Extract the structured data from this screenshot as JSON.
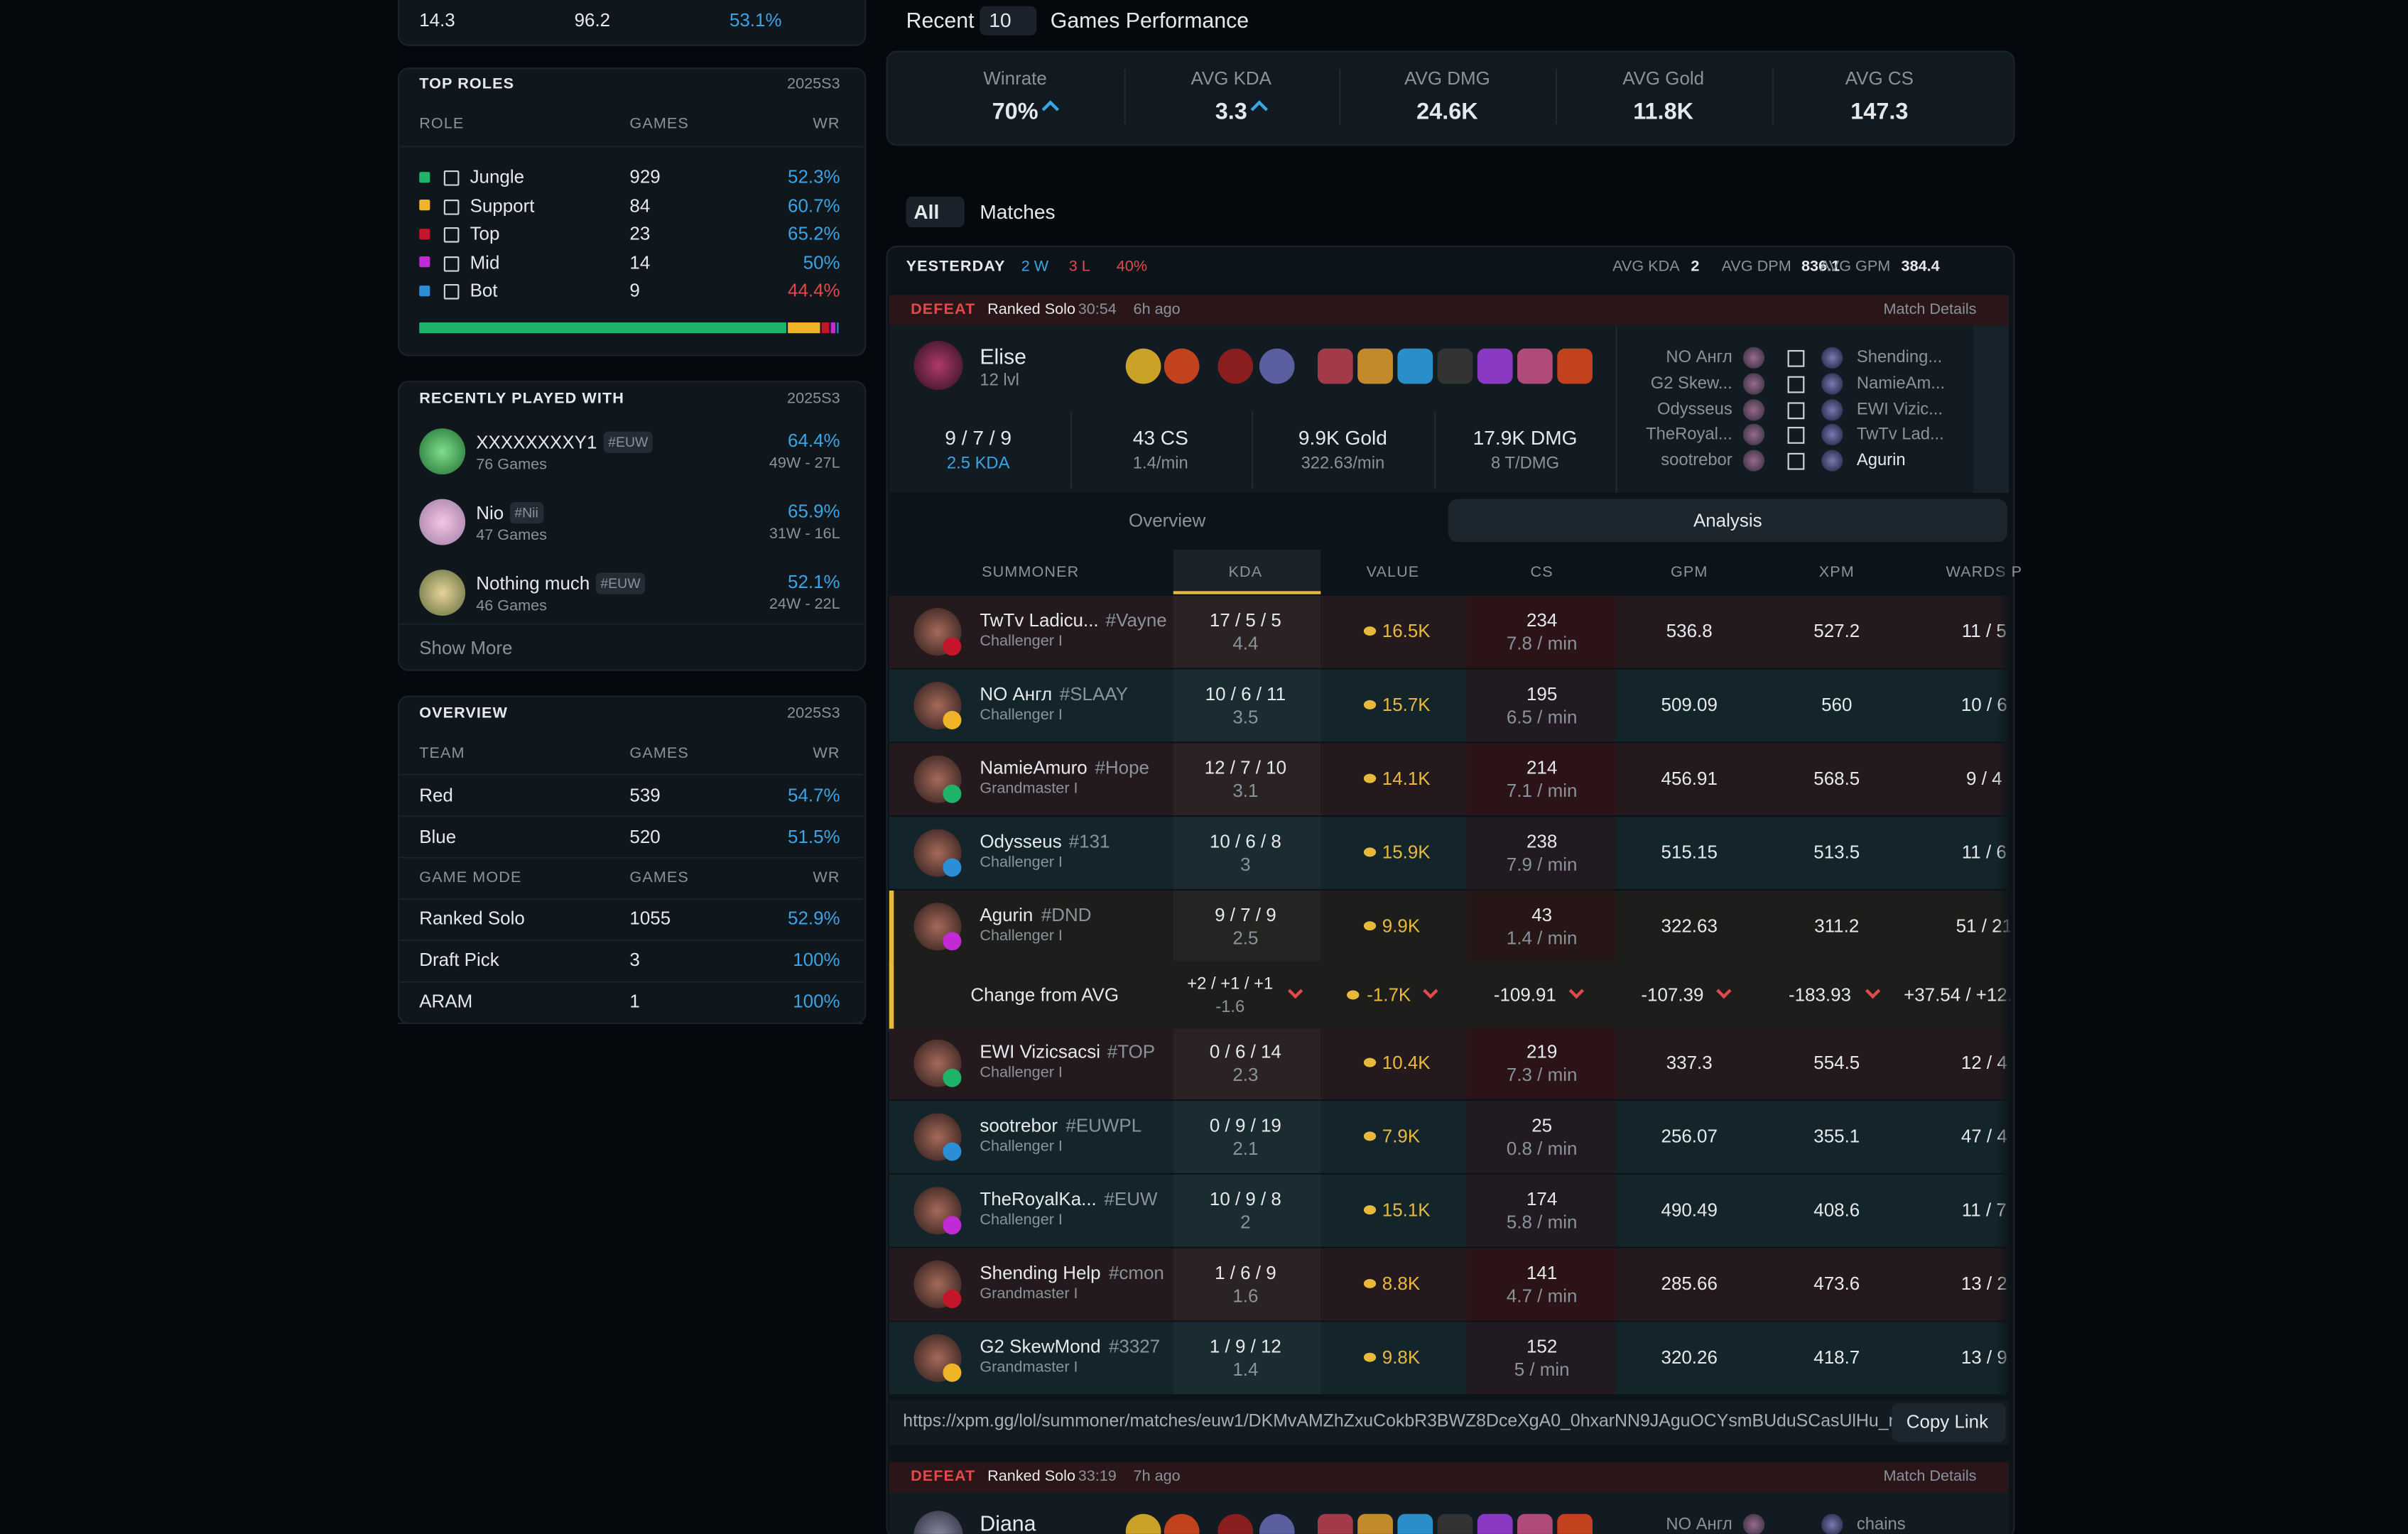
{
  "stats_strip": {
    "values": [
      "14.3",
      "96.2",
      "53.1%"
    ]
  },
  "top_roles": {
    "title": "TOP ROLES",
    "season": "2025S3",
    "headers": [
      "ROLE",
      "GAMES",
      "WR"
    ],
    "rows": [
      {
        "role": "Jungle",
        "games": 929,
        "wr": "52.3%",
        "color": "#1fb46a",
        "wr_color": "#3aa5e6"
      },
      {
        "role": "Support",
        "games": 84,
        "wr": "60.7%",
        "color": "#f0b429",
        "wr_color": "#3aa5e6"
      },
      {
        "role": "Top",
        "games": 23,
        "wr": "65.2%",
        "color": "#c4162a",
        "wr_color": "#3aa5e6"
      },
      {
        "role": "Mid",
        "games": 14,
        "wr": "50%",
        "color": "#c429d6",
        "wr_color": "#3aa5e6"
      },
      {
        "role": "Bot",
        "games": 9,
        "wr": "44.4%",
        "color": "#2a8fd6",
        "wr_color": "#e04a4a"
      }
    ]
  },
  "recently_played": {
    "title": "RECENTLY PLAYED WITH",
    "season": "2025S3",
    "players": [
      {
        "name": "XXXXXXXXY1",
        "tag": "#EUW",
        "games": "76 Games",
        "wr": "64.4%",
        "record": "49W - 27L"
      },
      {
        "name": "Nio",
        "tag": "#Nii",
        "games": "47 Games",
        "wr": "65.9%",
        "record": "31W - 16L"
      },
      {
        "name": "Nothing much",
        "tag": "#EUW",
        "games": "46 Games",
        "wr": "52.1%",
        "record": "24W - 22L"
      }
    ],
    "show_more": "Show More"
  },
  "overview": {
    "title": "OVERVIEW",
    "season": "2025S3",
    "groups": [
      {
        "headers": [
          "TEAM",
          "GAMES",
          "WR"
        ],
        "rows": [
          [
            "Red",
            "539",
            "54.7%"
          ],
          [
            "Blue",
            "520",
            "51.5%"
          ]
        ]
      },
      {
        "headers": [
          "GAME MODE",
          "GAMES",
          "WR"
        ],
        "rows": [
          [
            "Ranked Solo",
            "1055",
            "52.9%"
          ],
          [
            "Draft Pick",
            "3",
            "100%"
          ],
          [
            "ARAM",
            "1",
            "100%"
          ]
        ]
      }
    ]
  },
  "performance": {
    "recent": "Recent",
    "count": "10",
    "label": "Games Performance",
    "stats": [
      {
        "label": "Winrate",
        "value": "70%",
        "trend": "up"
      },
      {
        "label": "AVG KDA",
        "value": "3.3",
        "trend": "up"
      },
      {
        "label": "AVG DMG",
        "value": "24.6K"
      },
      {
        "label": "AVG Gold",
        "value": "11.8K"
      },
      {
        "label": "AVG CS",
        "value": "147.3"
      }
    ]
  },
  "matches_filter": {
    "filter": "All",
    "label": "Matches"
  },
  "day": {
    "label": "YESTERDAY",
    "wins": "2 W",
    "losses": "3 L",
    "winrate": "40%",
    "avgs": [
      {
        "label": "AVG KDA",
        "value": "2"
      },
      {
        "label": "AVG DPM",
        "value": "836.1"
      },
      {
        "label": "AVG GPM",
        "value": "384.4"
      }
    ]
  },
  "match1": {
    "result": "DEFEAT",
    "queue": "Ranked Solo",
    "duration": "30:54",
    "ago": "6h ago",
    "details": "Match Details",
    "champion": "Elise",
    "level": "12 lvl",
    "stats": [
      {
        "main": "9 / 7 / 9",
        "sub": "2.5 KDA"
      },
      {
        "main": "43 CS",
        "sub": "1.4/min"
      },
      {
        "main": "9.9K Gold",
        "sub": "322.63/min"
      },
      {
        "main": "17.9K DMG",
        "sub": "8 T/DMG"
      }
    ],
    "team_left": [
      "NO Англ",
      "G2 Skew...",
      "Odysseus",
      "TheRoyal...",
      "sootrebor"
    ],
    "team_right": [
      "Shending...",
      "NamieAm...",
      "EWI Vizic...",
      "TwTv Lad...",
      "Agurin"
    ],
    "tabs": [
      "Overview",
      "Analysis"
    ],
    "table": {
      "headers": [
        "SUMMONER",
        "KDA",
        "VALUE",
        "CS",
        "GPM",
        "XPM",
        "WARDS P"
      ],
      "rows": [
        {
          "name": "TwTv Ladicu...",
          "tag": "#Vayne",
          "rank": "Challenger I",
          "kda": "17 / 5 / 5",
          "ratio": "4.4",
          "value": "16.5K",
          "cs": "234",
          "cs_min": "7.8 / min",
          "gpm": "536.8",
          "xpm": "527.2",
          "wards": "11 / 5",
          "row_color": "#241a1d"
        },
        {
          "name": "NO Англ",
          "tag": "#SLAAY",
          "rank": "Challenger I",
          "kda": "10 / 6 / 11",
          "ratio": "3.5",
          "value": "15.7K",
          "cs": "195",
          "cs_min": "6.5 / min",
          "gpm": "509.09",
          "xpm": "560",
          "wards": "10 / 6",
          "row_color": "#13242b"
        },
        {
          "name": "NamieAmuro",
          "tag": "#Hope",
          "rank": "Grandmaster I",
          "kda": "12 / 7 / 10",
          "ratio": "3.1",
          "value": "14.1K",
          "cs": "214",
          "cs_min": "7.1 / min",
          "gpm": "456.91",
          "xpm": "568.5",
          "wards": "9 / 4",
          "row_color": "#241a1d"
        },
        {
          "name": "Odysseus",
          "tag": "#131",
          "rank": "Challenger I",
          "kda": "10 / 6 / 8",
          "ratio": "3",
          "value": "15.9K",
          "cs": "238",
          "cs_min": "7.9 / min",
          "gpm": "515.15",
          "xpm": "513.5",
          "wards": "11 / 6",
          "row_color": "#13242b"
        },
        {
          "name": "Agurin",
          "tag": "#DND",
          "rank": "Challenger I",
          "kda": "9 / 7 / 9",
          "ratio": "2.5",
          "value": "9.9K",
          "cs": "43",
          "cs_min": "1.4 / min",
          "gpm": "322.63",
          "xpm": "311.2",
          "wards": "51 / 21",
          "row_color": "#1d1e1b"
        },
        {
          "name": "EWI Vizicsacsi",
          "tag": "#TOP",
          "rank": "Challenger I",
          "kda": "0 / 6 / 14",
          "ratio": "2.3",
          "value": "10.4K",
          "cs": "219",
          "cs_min": "7.3 / min",
          "gpm": "337.3",
          "xpm": "554.5",
          "wards": "12 / 4",
          "row_color": "#241a1d"
        },
        {
          "name": "sootrebor",
          "tag": "#EUWPL",
          "rank": "Challenger I",
          "kda": "0 / 9 / 19",
          "ratio": "2.1",
          "value": "7.9K",
          "cs": "25",
          "cs_min": "0.8 / min",
          "gpm": "256.07",
          "xpm": "355.1",
          "wards": "47 / 4",
          "row_color": "#13242b"
        },
        {
          "name": "TheRoyalKa...",
          "tag": "#EUW",
          "rank": "Challenger I",
          "kda": "10 / 9 / 8",
          "ratio": "2",
          "value": "15.1K",
          "cs": "174",
          "cs_min": "5.8 / min",
          "gpm": "490.49",
          "xpm": "408.6",
          "wards": "11 / 7",
          "row_color": "#13242b"
        },
        {
          "name": "Shending Help",
          "tag": "#cmon",
          "rank": "Grandmaster I",
          "kda": "1 / 6 / 9",
          "ratio": "1.6",
          "value": "8.8K",
          "cs": "141",
          "cs_min": "4.7 / min",
          "gpm": "285.66",
          "xpm": "473.6",
          "wards": "13 / 2",
          "row_color": "#241a1d"
        },
        {
          "name": "G2 SkewMond",
          "tag": "#3327",
          "rank": "Grandmaster I",
          "kda": "1 / 9 / 12",
          "ratio": "1.4",
          "value": "9.8K",
          "cs": "152",
          "cs_min": "5 / min",
          "gpm": "320.26",
          "xpm": "418.7",
          "wards": "13 / 9",
          "row_color": "#13242b"
        }
      ],
      "change": {
        "label": "Change from AVG",
        "kda": "+2 / +1 / +1",
        "ratio": "-1.6",
        "value": "-1.7K",
        "cs": "-109.91",
        "gpm": "-107.39",
        "xpm": "-183.93",
        "wards": "+37.54 / +12."
      }
    },
    "url": "https://xpm.gg/lol/summoner/matches/euw1/DKMvAMZhZxuCokbR3BWZ8DceXgA0_0hxarNN9JAguOCYsmBUduSCasUlHu_r...",
    "copy": "Copy Link"
  },
  "match2": {
    "result": "DEFEAT",
    "queue": "Ranked Solo",
    "duration": "33:19",
    "ago": "7h ago",
    "details": "Match Details",
    "champion": "Diana",
    "team_left": [
      "NO Англ"
    ],
    "team_right": [
      "chains"
    ]
  }
}
